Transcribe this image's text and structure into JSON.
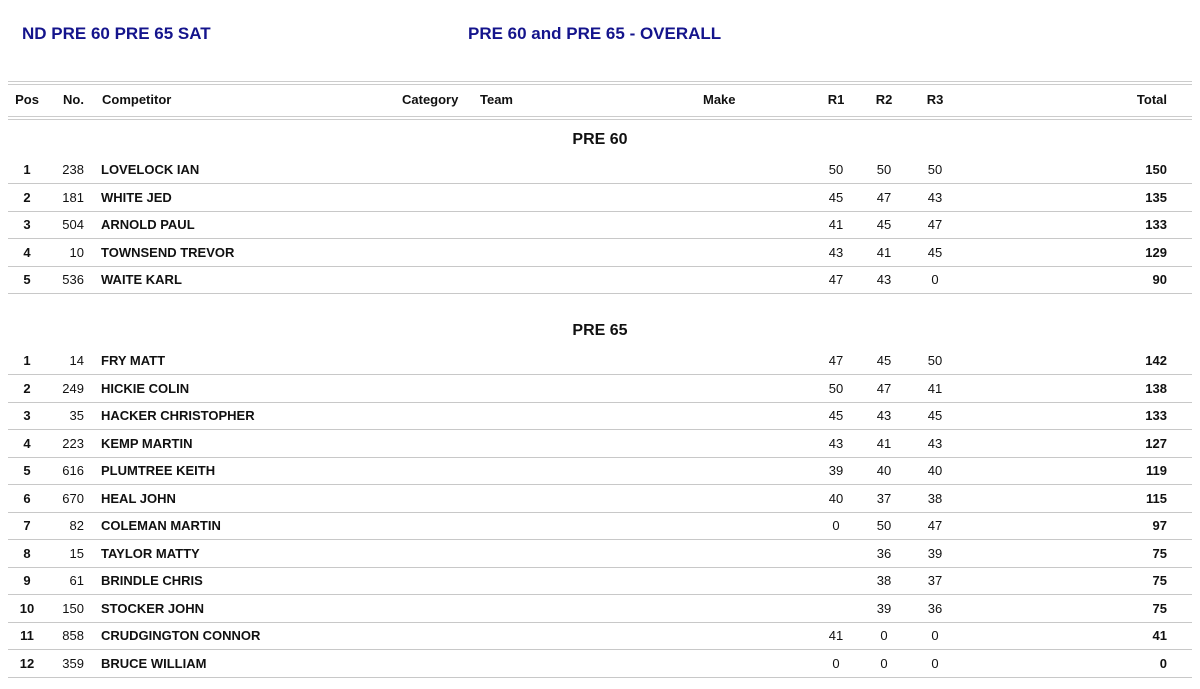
{
  "header": {
    "event": "ND PRE 60 PRE 65 SAT",
    "title": "PRE 60 and PRE 65 - OVERALL"
  },
  "columns": {
    "pos": "Pos",
    "no": "No.",
    "competitor": "Competitor",
    "category": "Category",
    "team": "Team",
    "make": "Make",
    "r1": "R1",
    "r2": "R2",
    "r3": "R3",
    "total": "Total"
  },
  "sections": [
    {
      "title": "PRE 60",
      "rows": [
        {
          "pos": "1",
          "no": "238",
          "name": "LOVELOCK IAN",
          "r1": "50",
          "r2": "50",
          "r3": "50",
          "total": "150"
        },
        {
          "pos": "2",
          "no": "181",
          "name": "WHITE JED",
          "r1": "45",
          "r2": "47",
          "r3": "43",
          "total": "135"
        },
        {
          "pos": "3",
          "no": "504",
          "name": "ARNOLD PAUL",
          "r1": "41",
          "r2": "45",
          "r3": "47",
          "total": "133"
        },
        {
          "pos": "4",
          "no": "10",
          "name": "TOWNSEND TREVOR",
          "r1": "43",
          "r2": "41",
          "r3": "45",
          "total": "129"
        },
        {
          "pos": "5",
          "no": "536",
          "name": "WAITE KARL",
          "r1": "47",
          "r2": "43",
          "r3": "0",
          "total": "90"
        }
      ]
    },
    {
      "title": "PRE 65",
      "rows": [
        {
          "pos": "1",
          "no": "14",
          "name": "FRY MATT",
          "r1": "47",
          "r2": "45",
          "r3": "50",
          "total": "142"
        },
        {
          "pos": "2",
          "no": "249",
          "name": "HICKIE COLIN",
          "r1": "50",
          "r2": "47",
          "r3": "41",
          "total": "138"
        },
        {
          "pos": "3",
          "no": "35",
          "name": "HACKER CHRISTOPHER",
          "r1": "45",
          "r2": "43",
          "r3": "45",
          "total": "133"
        },
        {
          "pos": "4",
          "no": "223",
          "name": "KEMP MARTIN",
          "r1": "43",
          "r2": "41",
          "r3": "43",
          "total": "127"
        },
        {
          "pos": "5",
          "no": "616",
          "name": "PLUMTREE KEITH",
          "r1": "39",
          "r2": "40",
          "r3": "40",
          "total": "119"
        },
        {
          "pos": "6",
          "no": "670",
          "name": "HEAL JOHN",
          "r1": "40",
          "r2": "37",
          "r3": "38",
          "total": "115"
        },
        {
          "pos": "7",
          "no": "82",
          "name": "COLEMAN MARTIN",
          "r1": "0",
          "r2": "50",
          "r3": "47",
          "total": "97"
        },
        {
          "pos": "8",
          "no": "15",
          "name": "TAYLOR MATTY",
          "r1": "",
          "r2": "36",
          "r3": "39",
          "total": "75"
        },
        {
          "pos": "9",
          "no": "61",
          "name": "BRINDLE CHRIS",
          "r1": "",
          "r2": "38",
          "r3": "37",
          "total": "75"
        },
        {
          "pos": "10",
          "no": "150",
          "name": "STOCKER JOHN",
          "r1": "",
          "r2": "39",
          "r3": "36",
          "total": "75"
        },
        {
          "pos": "11",
          "no": "858",
          "name": "CRUDGINGTON CONNOR",
          "r1": "41",
          "r2": "0",
          "r3": "0",
          "total": "41"
        },
        {
          "pos": "12",
          "no": "359",
          "name": "BRUCE WILLIAM",
          "r1": "0",
          "r2": "0",
          "r3": "0",
          "total": "0"
        }
      ]
    }
  ]
}
